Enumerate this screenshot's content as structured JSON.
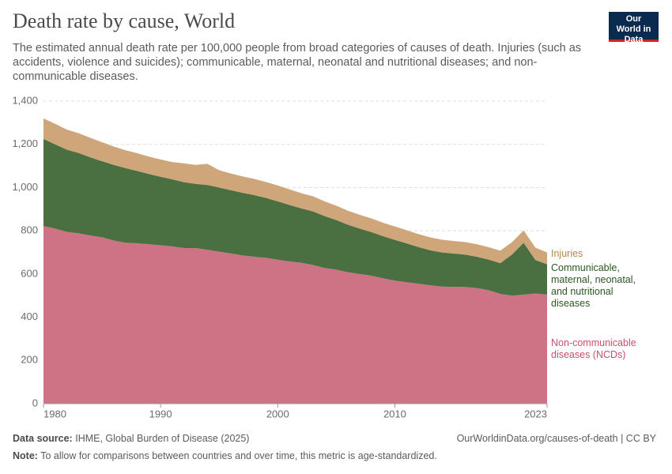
{
  "chart_data": {
    "type": "stacked-area",
    "title": "Death rate by cause, World",
    "subtitle": "The estimated annual death rate per 100,000 people from broad categories of causes of death. Injuries (such as accidents, violence and suicides); communicable, maternal, neonatal and nutritional diseases; and non-communicable diseases.",
    "logo": "Our World in Data",
    "x": [
      1980,
      1981,
      1982,
      1983,
      1984,
      1985,
      1986,
      1987,
      1988,
      1989,
      1990,
      1991,
      1992,
      1993,
      1994,
      1995,
      1996,
      1997,
      1998,
      1999,
      2000,
      2001,
      2002,
      2003,
      2004,
      2005,
      2006,
      2007,
      2008,
      2009,
      2010,
      2011,
      2012,
      2013,
      2014,
      2015,
      2016,
      2017,
      2018,
      2019,
      2020,
      2021,
      2022,
      2023
    ],
    "xlim": [
      1980,
      2023
    ],
    "xticks": [
      1980,
      1990,
      2000,
      2010,
      2023
    ],
    "ylim": [
      0,
      1400
    ],
    "yticks": [
      0,
      200,
      400,
      600,
      800,
      {
        "value": 1000,
        "label": "1,000"
      },
      {
        "value": 1200,
        "label": "1,200"
      },
      {
        "value": 1400,
        "label": "1,400"
      }
    ],
    "grid": true,
    "series": [
      {
        "name": "Non-communicable diseases (NCDs)",
        "color": "#ce7385",
        "label_color": "#c94f6b",
        "values": [
          822,
          810,
          795,
          788,
          778,
          770,
          755,
          745,
          742,
          738,
          733,
          728,
          720,
          720,
          712,
          703,
          695,
          686,
          680,
          675,
          666,
          658,
          652,
          642,
          628,
          620,
          608,
          600,
          592,
          580,
          570,
          562,
          555,
          548,
          542,
          540,
          540,
          535,
          525,
          508,
          500,
          505,
          510,
          505
        ]
      },
      {
        "name": "Communicable, maternal, neonatal, and nutritional diseases",
        "color": "#4a6f41",
        "label_color": "#2c5622",
        "values": [
          403,
          390,
          380,
          372,
          362,
          352,
          350,
          345,
          335,
          325,
          317,
          310,
          305,
          297,
          300,
          297,
          293,
          290,
          285,
          277,
          270,
          262,
          252,
          248,
          240,
          230,
          220,
          210,
          202,
          195,
          188,
          180,
          170,
          162,
          158,
          155,
          150,
          145,
          142,
          142,
          190,
          240,
          155,
          140
        ]
      },
      {
        "name": "Injuries",
        "color": "#cfa67a",
        "label_color": "#b5874f",
        "values": [
          95,
          95,
          93,
          92,
          90,
          88,
          85,
          83,
          82,
          80,
          80,
          80,
          87,
          88,
          98,
          80,
          77,
          76,
          75,
          74,
          74,
          72,
          70,
          70,
          68,
          66,
          65,
          64,
          63,
          62,
          62,
          61,
          60,
          60,
          59,
          58,
          58,
          58,
          57,
          58,
          57,
          57,
          57,
          55
        ]
      }
    ],
    "source_label": "Data source:",
    "source": "IHME, Global Burden of Disease (2025)",
    "url": "OurWorldinData.org/causes-of-death | CC BY",
    "note_label": "Note:",
    "note": "To allow for comparisons between countries and over time, this metric is age-standardized."
  }
}
